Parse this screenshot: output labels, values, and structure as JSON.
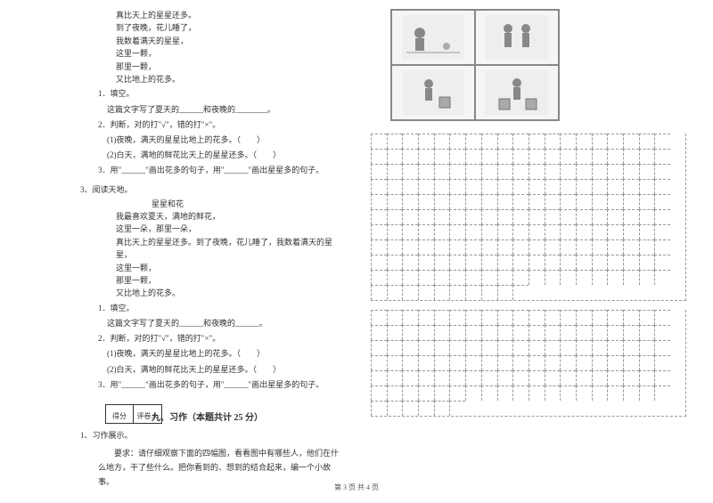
{
  "poem1": {
    "lines": [
      "真比天上的星星还多。",
      "到了夜晚，花儿睡了，",
      "我数着满天的星星，",
      "这里一颗，",
      "那里一颗，",
      "又比地上的花多。"
    ]
  },
  "q1": {
    "n1": "1．填空。",
    "n1_text": "这篇文字写了夏天的______和夜晚的________。",
    "n2": "2．判断，对的打\"√\"，错的打\"×\"。",
    "n2_1": "(1)夜晚，满天的星星比地上的花多。（　　）",
    "n2_2": "(2)白天，满地的鲜花比天上的星星还多。（　　）",
    "n3": "3．用\"______\"画出花多的句子，用\"______\"画出星星多的句子。"
  },
  "section3": "3、阅读天地。",
  "poem2": {
    "title": "星星和花",
    "lines": [
      "我最喜欢夏天，满地的鲜花，",
      "这里一朵，那里一朵，",
      "真比天上的星星还多。到了夜晚，花儿睡了，我数着满天的星星，",
      "这里一颗，",
      "那里一颗，",
      "又比地上的花多。"
    ]
  },
  "q2": {
    "n1": "1．填空。",
    "n1_text": "这篇文字写了夏天的______和夜晚的______。",
    "n2": "2．判断，对的打\"√\"，错的打\"×\"。",
    "n2_1": "(1)夜晚，满天的星星比地上的花多。（　　）",
    "n2_2": "(2)白天，满地的鲜花比天上的星星还多。（　　）",
    "n3": "3．用\"______\"画出花多的句子，用\"______\"画出星星多的句子。"
  },
  "score": {
    "a": "得分",
    "b": "评卷人"
  },
  "section9": "九、习作（本题共计 25 分）",
  "writing": {
    "n": "1、习作展示。",
    "req": "要求：请仔细观察下面的四幅图，看看图中有哪些人，他们在什么地方，干了些什么。把你看到的、想到的结合起来，编一个小故事。"
  },
  "footer": "第 3 页 共 4 页",
  "grid": {
    "cols": 20,
    "rows1": 10,
    "rows2": 6
  }
}
